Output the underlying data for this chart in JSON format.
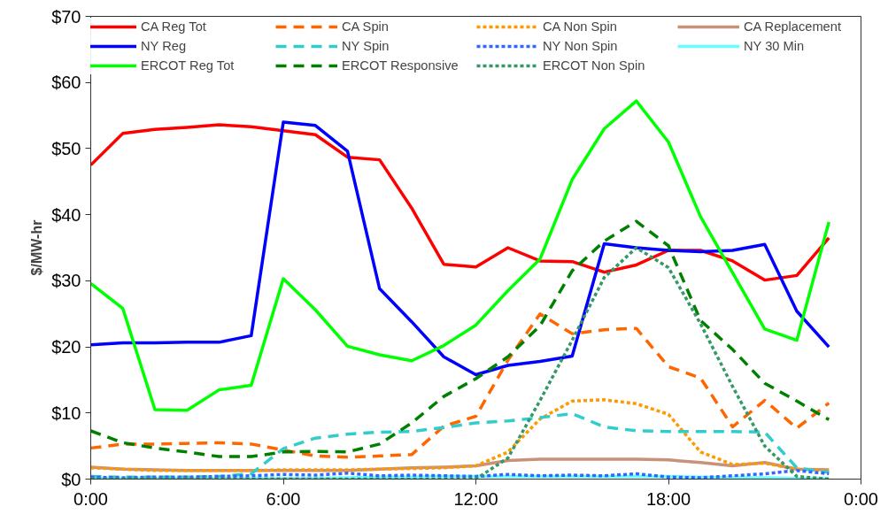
{
  "chart_data": {
    "type": "line",
    "ylabel": "$/MW-hr",
    "x": [
      0,
      1,
      2,
      3,
      4,
      5,
      6,
      7,
      8,
      9,
      10,
      11,
      12,
      13,
      14,
      15,
      16,
      17,
      18,
      19,
      20,
      21,
      22,
      23
    ],
    "xlim": [
      0,
      24
    ],
    "xticks": [
      {
        "value": 0,
        "label": "0:00"
      },
      {
        "value": 6,
        "label": "6:00"
      },
      {
        "value": 12,
        "label": "12:00"
      },
      {
        "value": 18,
        "label": "18:00"
      },
      {
        "value": 24,
        "label": "0:00"
      }
    ],
    "ylim": [
      0,
      70
    ],
    "yticks": [
      {
        "value": 0,
        "label": "$0"
      },
      {
        "value": 10,
        "label": "$10"
      },
      {
        "value": 20,
        "label": "$20"
      },
      {
        "value": 30,
        "label": "$30"
      },
      {
        "value": 40,
        "label": "$40"
      },
      {
        "value": 50,
        "label": "$50"
      },
      {
        "value": 60,
        "label": "$60"
      },
      {
        "value": 70,
        "label": "$70"
      }
    ],
    "grid": false,
    "legend": "top",
    "marker": "none",
    "series": [
      {
        "name": "CA Reg Tot",
        "color": "#ff0000",
        "line_style": "solid",
        "values": [
          47.5,
          52.3,
          52.9,
          53.2,
          53.6,
          53.3,
          52.7,
          52.1,
          48.7,
          48.3,
          41,
          32.5,
          32.1,
          35,
          33,
          32.9,
          31.3,
          32.4,
          34.6,
          34.6,
          33,
          30.1,
          30.8,
          36.5
        ]
      },
      {
        "name": "CA Spin",
        "color": "#ff6600",
        "line_style": "dashed",
        "values": [
          4.7,
          5.3,
          5.3,
          5.4,
          5.5,
          5.3,
          4.4,
          3.5,
          3.3,
          3.5,
          3.7,
          8,
          9.5,
          18,
          25,
          22,
          22.6,
          22.8,
          17,
          15.3,
          7.9,
          11.9,
          7.7,
          11.5
        ]
      },
      {
        "name": "CA Non Spin",
        "color": "#ff9900",
        "line_style": "dotted",
        "values": [
          1.7,
          1.5,
          1.3,
          1.3,
          1.3,
          1.3,
          1.4,
          1.4,
          1.4,
          1.5,
          1.6,
          1.7,
          2,
          4.1,
          9.1,
          11.8,
          12,
          11.4,
          9.8,
          4.1,
          2.2,
          2.4,
          1.5,
          1.3
        ]
      },
      {
        "name": "CA Replacement",
        "color": "#c8917a",
        "line_style": "solid",
        "values": [
          1.8,
          1.5,
          1.4,
          1.3,
          1.3,
          1.3,
          1.3,
          1.3,
          1.3,
          1.5,
          1.7,
          1.8,
          2,
          2.8,
          3,
          3,
          3,
          3,
          2.9,
          2.5,
          2,
          2.5,
          1.5,
          1.4
        ]
      },
      {
        "name": "NY Reg",
        "color": "#0000ff",
        "line_style": "solid",
        "values": [
          20.3,
          20.6,
          20.6,
          20.7,
          20.7,
          21.7,
          54,
          53.5,
          49.6,
          28.8,
          23.8,
          18.5,
          15.8,
          17.2,
          17.8,
          18.6,
          35.6,
          35,
          34.6,
          34.4,
          34.6,
          35.5,
          25.4,
          20
        ]
      },
      {
        "name": "NY Spin",
        "color": "#33cccc",
        "line_style": "dashed",
        "values": [
          0.4,
          0.3,
          0.3,
          0.3,
          0.4,
          0.8,
          4.6,
          6.2,
          6.8,
          7.1,
          7.2,
          7.8,
          8.5,
          8.8,
          9.3,
          9.9,
          7.9,
          7.3,
          7.2,
          7.2,
          7.2,
          7.1,
          1.7,
          1
        ]
      },
      {
        "name": "NY Non Spin",
        "color": "#3366ff",
        "line_style": "dotted",
        "values": [
          0.3,
          0.2,
          0.3,
          0.3,
          0.4,
          0.5,
          0.7,
          0.6,
          0.9,
          0.5,
          0.6,
          0.5,
          0.4,
          0.7,
          0.5,
          0.6,
          0.5,
          0.8,
          0.3,
          0.2,
          0.5,
          0.8,
          1.3,
          0.8
        ]
      },
      {
        "name": "NY 30 Min",
        "color": "#66ffff",
        "line_style": "solid",
        "values": [
          0.1,
          0.1,
          0.1,
          0.1,
          0.1,
          0.1,
          0.1,
          0.1,
          0.2,
          0.3,
          0.3,
          0.4,
          0.4,
          0.4,
          0.4,
          0.4,
          0.4,
          0.4,
          0.4,
          0.3,
          0.2,
          0.2,
          0.1,
          0.1
        ]
      },
      {
        "name": "ERCOT Reg Tot",
        "color": "#00ff00",
        "line_style": "solid",
        "values": [
          29.6,
          25.8,
          10.5,
          10.4,
          13.5,
          14.2,
          30.3,
          25.6,
          20.1,
          18.8,
          17.9,
          20.2,
          23.3,
          28.5,
          33.3,
          45.3,
          53,
          57.2,
          51,
          39.7,
          31.2,
          22.7,
          21,
          38.9
        ]
      },
      {
        "name": "ERCOT Responsive",
        "color": "#008000",
        "line_style": "dashed",
        "values": [
          7.3,
          5.5,
          4.7,
          4.1,
          3.4,
          3.4,
          4.1,
          4.2,
          4.1,
          5.3,
          8.5,
          12.5,
          15.2,
          18.5,
          23.2,
          31.5,
          36,
          39,
          35.3,
          24,
          19.6,
          14.5,
          11.8,
          9
        ]
      },
      {
        "name": "ERCOT Non Spin",
        "color": "#339966",
        "line_style": "dotted",
        "values": [
          0,
          0,
          0,
          0,
          0,
          0,
          0,
          0,
          0,
          0,
          0,
          0,
          0,
          3.2,
          11.9,
          21,
          30.5,
          35,
          32,
          23.5,
          14,
          5,
          0.4,
          0
        ]
      }
    ]
  }
}
